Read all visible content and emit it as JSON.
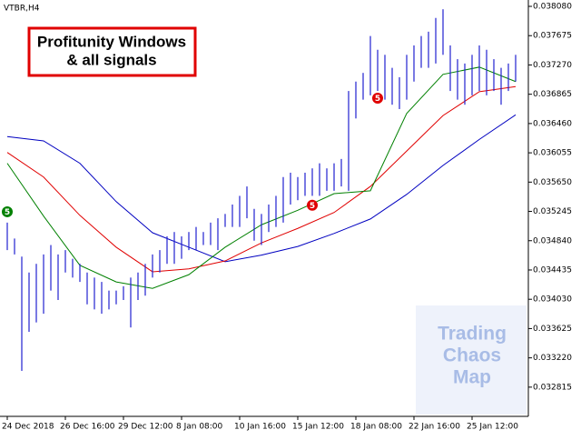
{
  "chart_data": {
    "type": "range-bar",
    "title": "VTBR,H4",
    "annotation": [
      "Profitunity Windows",
      "& all signals"
    ],
    "watermark": [
      "Trading",
      "Chaos",
      "Map"
    ],
    "categories": [
      "24 Dec 2018",
      null,
      null,
      null,
      null,
      null,
      null,
      null,
      "26 Dec 16:00",
      null,
      null,
      null,
      null,
      null,
      null,
      null,
      "29 Dec 12:00",
      null,
      null,
      null,
      null,
      null,
      null,
      null,
      "8 Jan 08:00",
      null,
      null,
      null,
      null,
      null,
      null,
      null,
      "10 Jan 16:00",
      null,
      null,
      null,
      null,
      null,
      null,
      null,
      "15 Jan 12:00",
      null,
      null,
      null,
      null,
      null,
      null,
      null,
      "18 Jan 08:00",
      null,
      null,
      null,
      null,
      null,
      null,
      null,
      "22 Jan 16:00",
      null,
      null,
      null,
      null,
      null,
      null,
      null,
      "25 Jan 12:00",
      null,
      null,
      null,
      null,
      null,
      null
    ],
    "high": [
      0.03509,
      0.03487,
      0.03462,
      0.0344,
      0.03452,
      0.03465,
      0.03478,
      0.03465,
      0.03471,
      0.03459,
      0.03452,
      0.0344,
      0.03433,
      0.03427,
      0.03415,
      0.03415,
      0.03421,
      0.03433,
      0.0344,
      0.03452,
      0.03465,
      0.03471,
      0.0349,
      0.03496,
      0.0349,
      0.03496,
      0.03503,
      0.03496,
      0.03509,
      0.03515,
      0.03521,
      0.03534,
      0.03546,
      0.03559,
      0.03528,
      0.03521,
      0.03534,
      0.03546,
      0.03572,
      0.03578,
      0.03572,
      0.03578,
      0.03584,
      0.03591,
      0.03584,
      0.03591,
      0.03597,
      0.03691,
      0.03704,
      0.03716,
      0.03767,
      0.03748,
      0.03741,
      0.03723,
      0.0371,
      0.03741,
      0.03754,
      0.03767,
      0.03773,
      0.03792,
      0.03804,
      0.03754,
      0.03735,
      0.03729,
      0.03741,
      0.03754,
      0.03748,
      0.03735,
      0.03723,
      0.03729,
      0.03741
    ],
    "low": [
      0.03471,
      0.03465,
      0.03304,
      0.03358,
      0.03371,
      0.03383,
      0.03415,
      0.03402,
      0.0344,
      0.03433,
      0.03427,
      0.03396,
      0.03389,
      0.03383,
      0.03389,
      0.03396,
      0.03402,
      0.03364,
      0.03402,
      0.03408,
      0.03433,
      0.0344,
      0.03452,
      0.03452,
      0.03459,
      0.03471,
      0.03471,
      0.03478,
      0.03478,
      0.03471,
      0.03503,
      0.03503,
      0.03503,
      0.03515,
      0.03484,
      0.03478,
      0.03496,
      0.03503,
      0.03509,
      0.03534,
      0.0354,
      0.03546,
      0.03546,
      0.03546,
      0.03553,
      0.03553,
      0.03559,
      0.03553,
      0.03653,
      0.03679,
      0.03685,
      0.03691,
      0.03679,
      0.03672,
      0.03666,
      0.03679,
      0.03704,
      0.03723,
      0.03723,
      0.03729,
      0.03741,
      0.03691,
      0.03679,
      0.03672,
      0.03685,
      0.03691,
      0.03685,
      0.03691,
      0.03672,
      0.03691,
      0.03704
    ],
    "color": "#2020d0",
    "series": [
      {
        "x": [
          0,
          5,
          10,
          15,
          20,
          25,
          30,
          35,
          40,
          45,
          50,
          55,
          60,
          65,
          70
        ],
        "color": "#0000c0",
        "values": [
          0.03628,
          0.03622,
          0.03591,
          0.03538,
          0.03495,
          0.03475,
          0.03455,
          0.03464,
          0.03476,
          0.03494,
          0.03514,
          0.03548,
          0.03588,
          0.03624,
          0.03658
        ]
      },
      {
        "x": [
          0,
          5,
          10,
          15,
          20,
          25,
          30,
          35,
          40,
          45,
          50,
          55,
          60,
          65,
          70
        ],
        "color": "#e00000",
        "values": [
          0.03606,
          0.03572,
          0.03519,
          0.03475,
          0.03441,
          0.03445,
          0.03456,
          0.03481,
          0.03501,
          0.03523,
          0.03559,
          0.03608,
          0.03657,
          0.0369,
          0.03697
        ]
      },
      {
        "x": [
          0,
          5,
          10,
          15,
          20,
          25,
          30,
          35,
          40,
          45,
          50,
          55,
          60,
          65,
          70
        ],
        "color": "#008000",
        "values": [
          0.03591,
          0.03518,
          0.0345,
          0.03427,
          0.03418,
          0.03437,
          0.03475,
          0.03506,
          0.03526,
          0.03549,
          0.03553,
          0.0366,
          0.03714,
          0.03724,
          0.03704
        ]
      }
    ],
    "signals": [
      {
        "x": 0,
        "value": 0.03524,
        "label": "5",
        "color": "#008000"
      },
      {
        "x": 42,
        "value": 0.03533,
        "label": "5",
        "color": "#e00000"
      },
      {
        "x": 51,
        "value": 0.03681,
        "label": "5",
        "color": "#e00000"
      }
    ],
    "ylim": [
      0.032411,
      0.038168
    ],
    "yticks": [
      {
        "value": 0.03808,
        "label": "0.038080"
      },
      {
        "value": 0.037675,
        "label": "0.037675"
      },
      {
        "value": 0.03727,
        "label": "0.037270"
      },
      {
        "value": 0.036865,
        "label": "0.036865"
      },
      {
        "value": 0.03646,
        "label": "0.036460"
      },
      {
        "value": 0.036055,
        "label": "0.036055"
      },
      {
        "value": 0.03565,
        "label": "0.035650"
      },
      {
        "value": 0.035245,
        "label": "0.035245"
      },
      {
        "value": 0.03484,
        "label": "0.034840"
      },
      {
        "value": 0.034435,
        "label": "0.034435"
      },
      {
        "value": 0.03403,
        "label": "0.034030"
      },
      {
        "value": 0.033625,
        "label": "0.033625"
      },
      {
        "value": 0.03322,
        "label": "0.033220"
      },
      {
        "value": 0.032815,
        "label": "0.032815"
      }
    ]
  }
}
